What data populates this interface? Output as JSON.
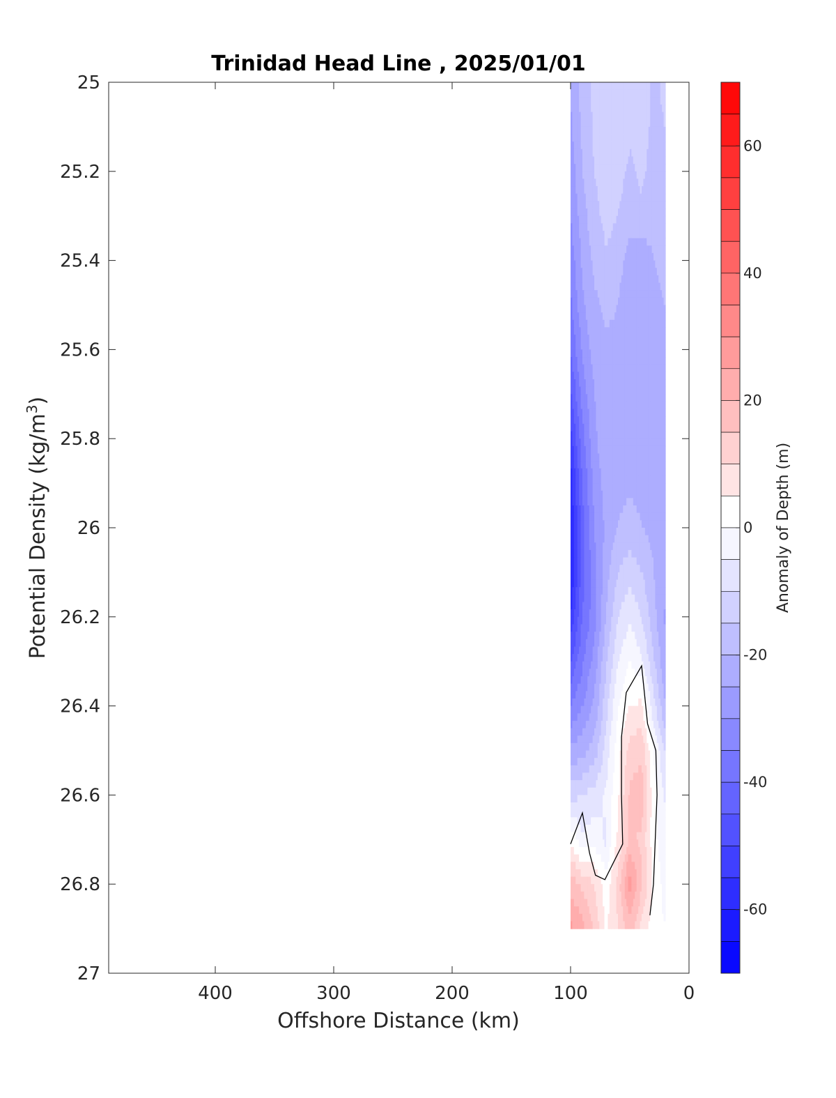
{
  "chart_data": {
    "type": "heatmap",
    "title": "Trinidad Head Line , 2025/01/01",
    "xlabel": "Offshore Distance (km)",
    "ylabel_main": "Potential Density (kg/m",
    "ylabel_sup": "3",
    "ylabel_end": ")",
    "xlim": [
      490,
      0
    ],
    "ylim": [
      25,
      27
    ],
    "y_reversed": true,
    "x_reversed": true,
    "xticks": [
      400,
      300,
      200,
      100,
      0
    ],
    "xtick_labels": [
      "400",
      "300",
      "200",
      "100",
      "0"
    ],
    "yticks": [
      25,
      25.2,
      25.4,
      25.6,
      25.8,
      26,
      26.2,
      26.4,
      26.6,
      26.8,
      27
    ],
    "ytick_labels": [
      "25",
      "25.2",
      "25.4",
      "25.6",
      "25.8",
      "26",
      "26.2",
      "26.4",
      "26.6",
      "26.8",
      "27"
    ],
    "colorbar": {
      "label": "Anomaly of Depth (m)",
      "range": [
        -70,
        70
      ],
      "level_step": 5,
      "ticks": [
        60,
        40,
        20,
        0,
        -20,
        -40,
        -60
      ],
      "tick_labels": [
        "60",
        "40",
        "20",
        "0",
        "-20",
        "-40",
        "-60"
      ],
      "color_low": "#0000ff",
      "color_mid": "#ffffff",
      "color_high": "#ff0000"
    },
    "data_extent": {
      "x_range": [
        100,
        20
      ],
      "y_range": [
        25,
        26.9
      ]
    },
    "x_stations": [
      100,
      90,
      80,
      70,
      60,
      50,
      40,
      30,
      20
    ],
    "y_levels": [
      25,
      25.1,
      25.2,
      25.3,
      25.4,
      25.5,
      25.6,
      25.7,
      25.8,
      25.9,
      26,
      26.1,
      26.2,
      26.3,
      26.4,
      26.5,
      26.6,
      26.7,
      26.8,
      26.9
    ],
    "values": [
      [
        -24,
        -18,
        -14,
        -10,
        -12,
        -14,
        -13,
        -16,
        -14
      ],
      [
        -26,
        -19,
        -14,
        -11,
        -12,
        -14,
        -13,
        -16,
        -15
      ],
      [
        -28,
        -20,
        -15,
        -12,
        -13,
        -16,
        -14,
        -17,
        -16
      ],
      [
        -30,
        -22,
        -17,
        -13,
        -15,
        -18,
        -16,
        -18,
        -17
      ],
      [
        -33,
        -24,
        -19,
        -16,
        -18,
        -22,
        -24,
        -20,
        -19
      ],
      [
        -36,
        -26,
        -21,
        -19,
        -20,
        -24,
        -25,
        -21,
        -20
      ],
      [
        -40,
        -29,
        -23,
        -21,
        -21,
        -23,
        -22,
        -21,
        -20
      ],
      [
        -46,
        -33,
        -25,
        -22,
        -21,
        -21,
        -21,
        -21,
        -20
      ],
      [
        -52,
        -37,
        -26,
        -22,
        -21,
        -21,
        -21,
        -21,
        -20
      ],
      [
        -58,
        -40,
        -28,
        -23,
        -21,
        -21,
        -21,
        -21,
        -20
      ],
      [
        -60,
        -42,
        -30,
        -24,
        -20,
        -18,
        -20,
        -21,
        -20
      ],
      [
        -60,
        -42,
        -32,
        -22,
        -15,
        -12,
        -15,
        -20,
        -24
      ],
      [
        -55,
        -40,
        -32,
        -20,
        -10,
        -6,
        -10,
        -18,
        -26
      ],
      [
        -45,
        -36,
        -28,
        -16,
        -5,
        0,
        -4,
        -14,
        -24
      ],
      [
        -35,
        -30,
        -24,
        -12,
        0,
        5,
        6,
        -8,
        -20
      ],
      [
        -24,
        -22,
        -18,
        -8,
        3,
        12,
        14,
        0,
        -10
      ],
      [
        -12,
        -10,
        -8,
        -4,
        4,
        16,
        18,
        2,
        -6
      ],
      [
        4,
        -4,
        -2,
        -6,
        6,
        16,
        14,
        2,
        -4
      ],
      [
        18,
        14,
        10,
        2,
        12,
        28,
        16,
        4,
        -2
      ],
      [
        26,
        22,
        14,
        4,
        10,
        18,
        8,
        2,
        0
      ]
    ],
    "zero_contour": [
      [
        100,
        26.71
      ],
      [
        90,
        26.64
      ],
      [
        84,
        26.73
      ],
      [
        79,
        26.78
      ],
      [
        71,
        26.79
      ],
      [
        56,
        26.71
      ],
      [
        57,
        26.6
      ],
      [
        57,
        26.47
      ],
      [
        53,
        26.37
      ],
      [
        40,
        26.31
      ],
      [
        35,
        26.44
      ],
      [
        28,
        26.5
      ],
      [
        27,
        26.6
      ],
      [
        30,
        26.8
      ],
      [
        33,
        26.87
      ]
    ]
  }
}
